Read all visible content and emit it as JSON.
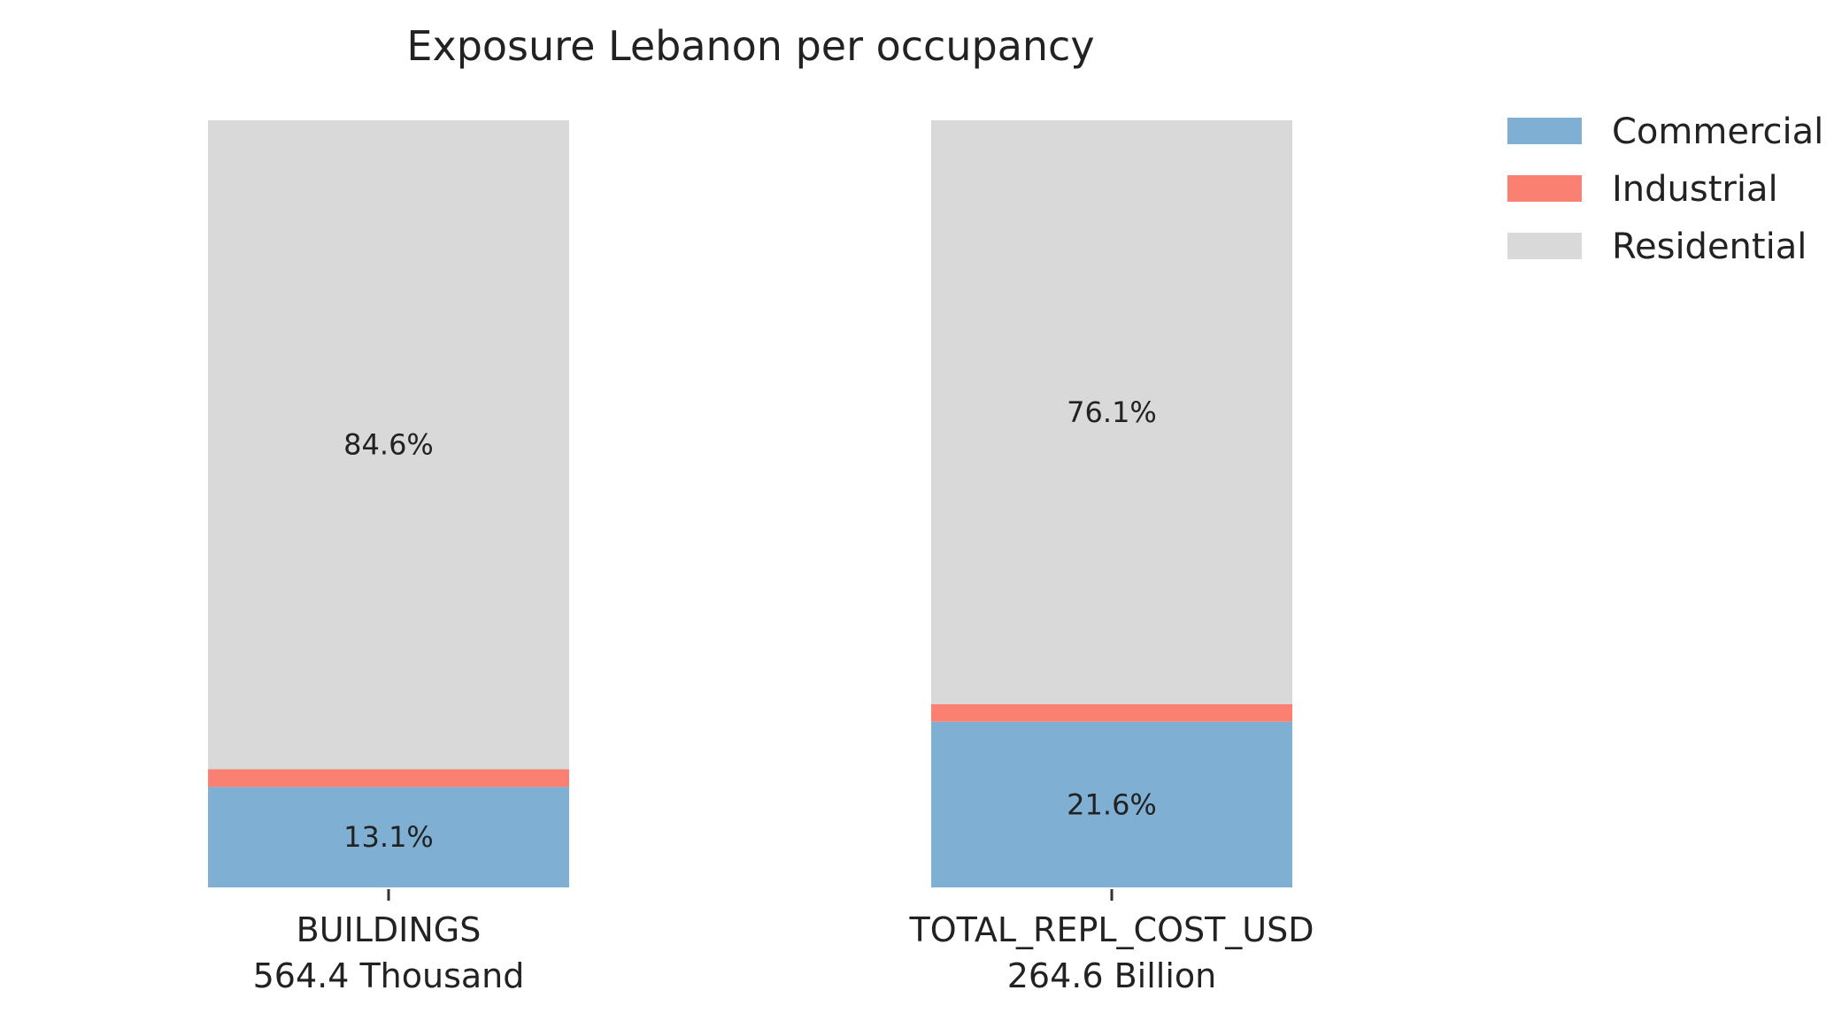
{
  "chart_data": {
    "type": "bar",
    "stacked": true,
    "normalized": true,
    "title": "Exposure Lebanon per occupancy",
    "categories": [
      {
        "name": "BUILDINGS",
        "total_label": "564.4 Thousand"
      },
      {
        "name": "TOTAL_REPL_COST_USD",
        "total_label": "264.6 Billion"
      }
    ],
    "series": [
      {
        "name": "Commercial",
        "color": "#7fb0d3",
        "values": [
          13.1,
          21.6
        ],
        "labels": [
          "13.1%",
          "21.6%"
        ]
      },
      {
        "name": "Industrial",
        "color": "#fa8072",
        "values": [
          2.3,
          2.3
        ],
        "labels": [
          "",
          ""
        ]
      },
      {
        "name": "Residential",
        "color": "#d9d9d9",
        "values": [
          84.6,
          76.1
        ],
        "labels": [
          "84.6%",
          "76.1%"
        ]
      }
    ],
    "ylim": [
      0,
      100
    ],
    "grid": false,
    "legend_position": "top-right"
  }
}
